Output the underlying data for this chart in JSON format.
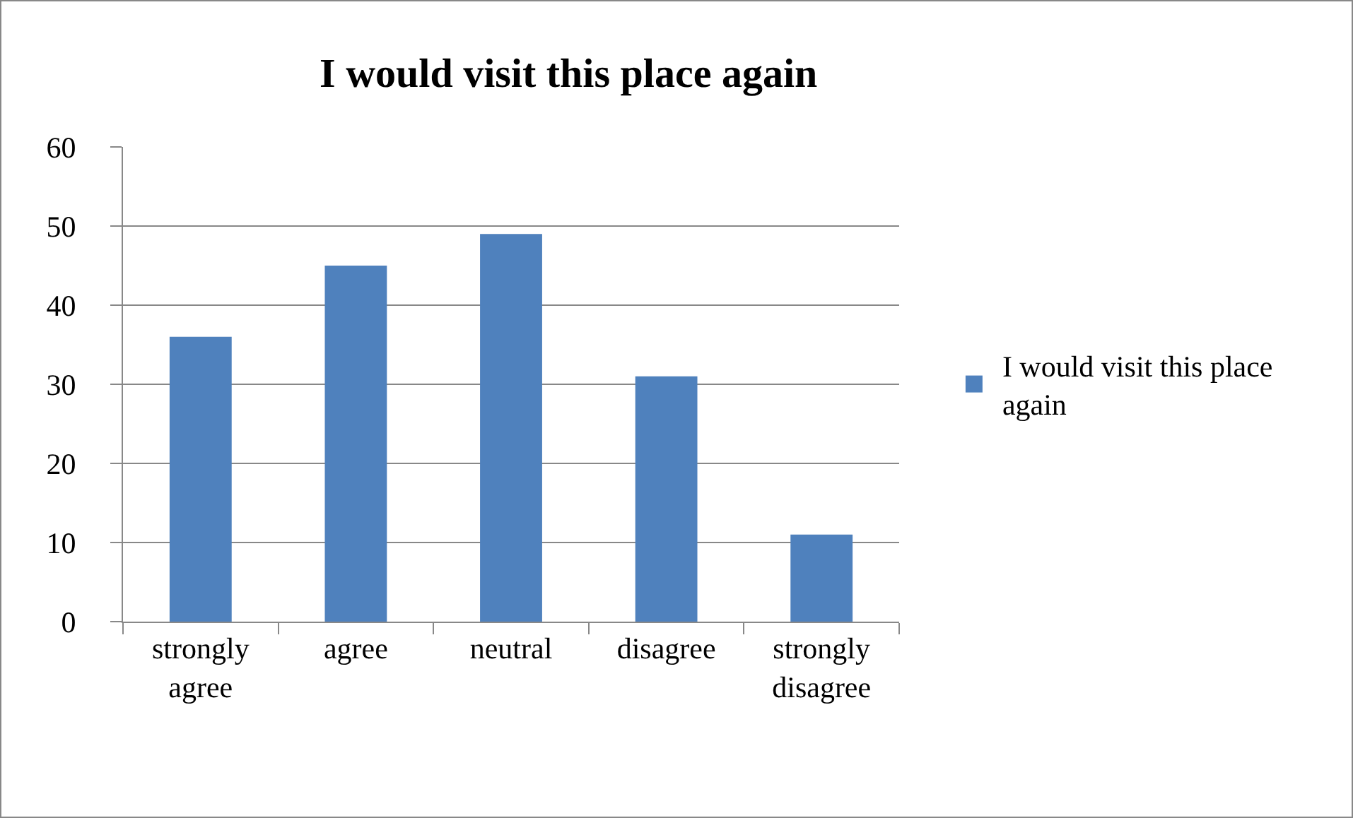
{
  "chart_data": {
    "type": "bar",
    "title": "I would visit this place again",
    "categories": [
      "strongly agree",
      "agree",
      "neutral",
      "disagree",
      "strongly disagree"
    ],
    "series": [
      {
        "name": "I would visit this place again",
        "color": "#4f81bd",
        "values": [
          36,
          45,
          49,
          31,
          11
        ]
      }
    ],
    "ylim": [
      0,
      60
    ],
    "yticks": [
      0,
      10,
      20,
      30,
      40,
      50,
      60
    ],
    "grid": "y",
    "legend": "right"
  }
}
